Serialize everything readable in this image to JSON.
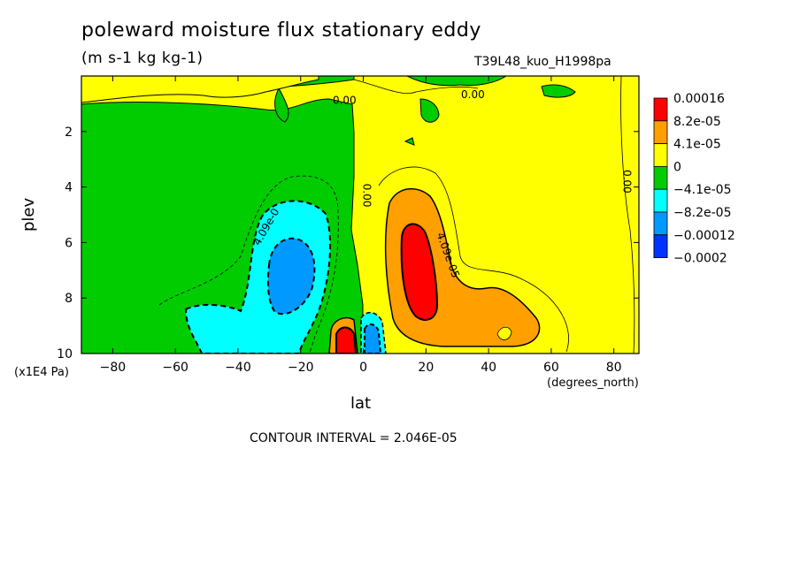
{
  "chart_data": {
    "type": "contour",
    "title": "poleward moisture flux stationary eddy",
    "units": "(m s-1 kg kg-1)",
    "run_id": "T39L48_kuo_H1998pa",
    "xlabel": "lat",
    "xunits": "(degrees_north)",
    "ylabel": "plev",
    "yunits": "(x1E4 Pa)",
    "contour_interval_text": "CONTOUR INTERVAL = 2.046E-05",
    "xlim": [
      -90,
      88
    ],
    "ylim_top_to_bottom": [
      0,
      10
    ],
    "x_ticks": [
      -80,
      -60,
      -40,
      -20,
      0,
      20,
      40,
      60,
      80
    ],
    "y_ticks": [
      2,
      4,
      6,
      8,
      10
    ],
    "legend": [
      {
        "label": "0.00016",
        "color": "#ff0000"
      },
      {
        "label": "8.2e-05",
        "color": "#ff9f00"
      },
      {
        "label": "4.1e-05",
        "color": "#ffff00"
      },
      {
        "label": "0",
        "color": "#00cc00"
      },
      {
        "label": "−4.1e-05",
        "color": "#00ffff"
      },
      {
        "label": "−8.2e-05",
        "color": "#0099ff"
      },
      {
        "label": "−0.00012",
        "color": "#0033ff"
      },
      {
        "label": "−0.0002",
        "color": null
      }
    ],
    "contour_labels": [
      {
        "text": "0.00",
        "lon": -6,
        "p": 1.0
      },
      {
        "text": "0.00",
        "lon": 35,
        "p": 0.8
      },
      {
        "text": "0.00",
        "lon": 0,
        "p": 4.3
      },
      {
        "text": "0.00",
        "lon": 83,
        "p": 3.8
      },
      {
        "text": "4.09e-0",
        "lon": -30,
        "p": 5.5
      },
      {
        "text": "4.09e-05",
        "lon": 26,
        "p": 6.5
      }
    ],
    "features": [
      {
        "name": "max positive",
        "lon": 18,
        "p": 7,
        "value": 0.00016
      },
      {
        "name": "min negative",
        "lon": -22,
        "p": 7.3,
        "value": -0.00012
      },
      {
        "name": "surface dipole positive",
        "lon": -4,
        "p": 9.5,
        "value": 0.00016
      },
      {
        "name": "surface dipole negative",
        "lon": 4,
        "p": 9.5,
        "value": -0.00012
      }
    ],
    "grid": false
  },
  "palette": {
    "red": "#ff0000",
    "orange": "#ff9f00",
    "yellow": "#ffff00",
    "green": "#00cc00",
    "cyan": "#00ffff",
    "lightblue": "#0099ff",
    "blue": "#0033ff"
  }
}
